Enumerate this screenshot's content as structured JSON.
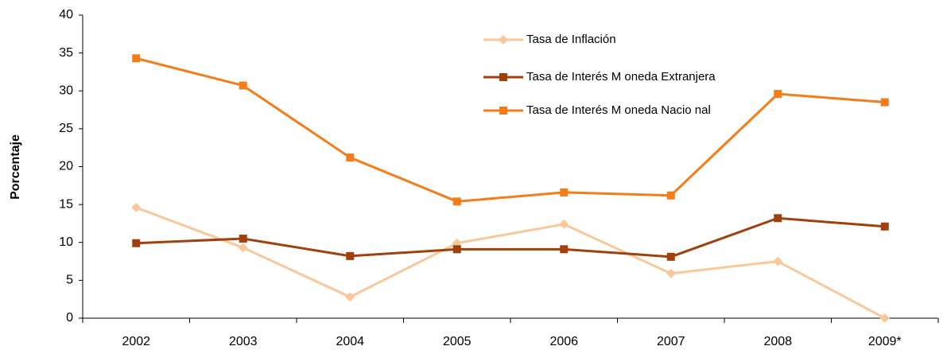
{
  "chart_data": {
    "type": "line",
    "y_label": "Porcentaje",
    "categories": [
      "2002",
      "2003",
      "2004",
      "2005",
      "2006",
      "2007",
      "2008",
      "2009*"
    ],
    "series": [
      {
        "name": "Tasa de Inflación",
        "color": "#f9c89a",
        "marker": "diamond",
        "values": [
          14.6,
          9.3,
          2.8,
          9.9,
          12.4,
          5.9,
          7.5,
          0
        ]
      },
      {
        "name": "Tasa de Interés M oneda Extranjera",
        "color": "#a0410d",
        "marker": "square",
        "values": [
          9.9,
          10.5,
          8.2,
          9.1,
          9.1,
          8.1,
          13.2,
          12.1
        ]
      },
      {
        "name": "Tasa de Interés M oneda Nacio nal",
        "color": "#f57c17",
        "marker": "square",
        "values": [
          34.3,
          30.7,
          21.2,
          15.4,
          16.6,
          16.2,
          29.6,
          28.5
        ]
      }
    ],
    "ylim": [
      0,
      40
    ],
    "yticks": [
      0,
      5,
      10,
      15,
      20,
      25,
      30,
      35,
      40
    ],
    "grid": false
  }
}
